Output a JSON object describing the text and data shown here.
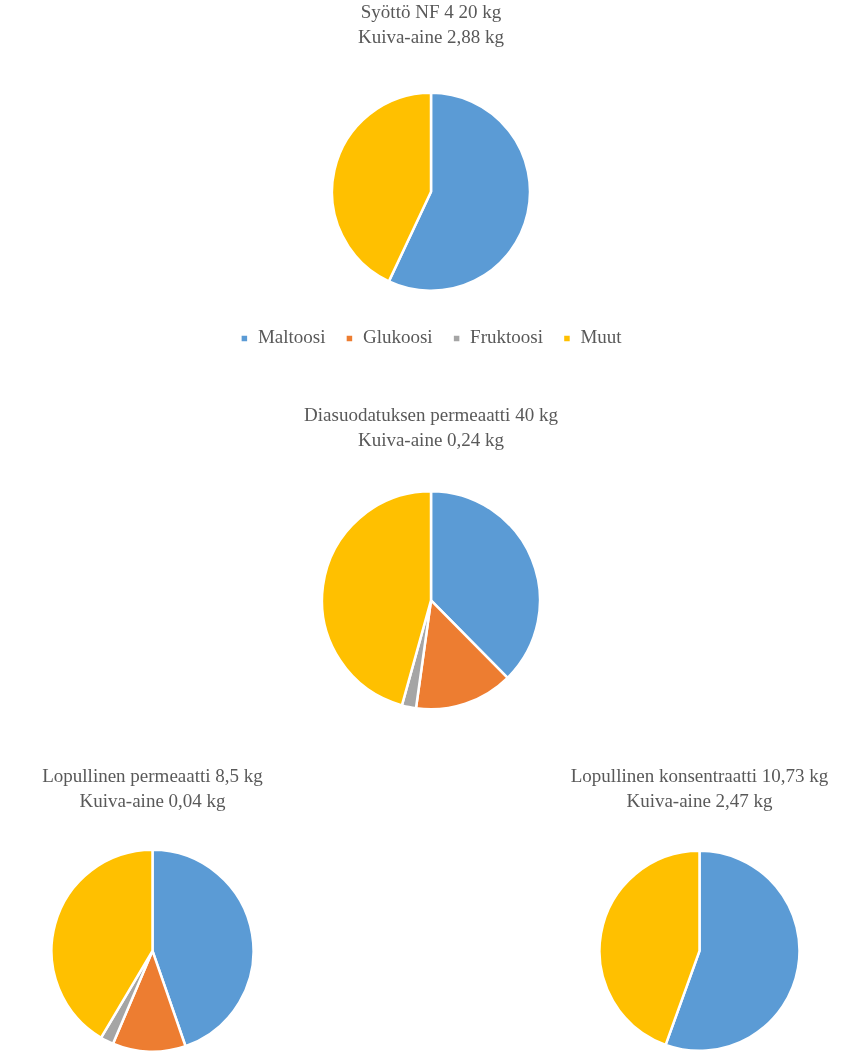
{
  "chart_data": [
    {
      "type": "pie",
      "title": "Syöttö NF 4 20 kg",
      "subtitle": "Kuiva-aine 2,88 kg",
      "categories": [
        "Maltoosi",
        "Glukoosi",
        "Fruktoosi",
        "Muut"
      ],
      "values": [
        57,
        0,
        0,
        43
      ],
      "colors": [
        "#5b9bd5",
        "#ed7d31",
        "#a5a5a5",
        "#ffc000"
      ],
      "legend": "bottom"
    },
    {
      "type": "pie",
      "title": "Diasuodatuksen permeaatti 40 kg",
      "subtitle": "Kuiva-aine 0,24 kg",
      "categories": [
        null,
        null,
        null,
        null
      ],
      "values": [
        37.6,
        14.6,
        2.1,
        45.7
      ],
      "colors": [
        "#5b9bd5",
        "#ed7d31",
        "#a5a5a5",
        "#ffc000"
      ]
    },
    {
      "type": "pie",
      "title": "Lopullinen permeaatti 8,5 kg",
      "subtitle": "Kuiva-aine 0,04 kg",
      "categories": [
        null,
        null,
        null,
        null
      ],
      "values": [
        44.7,
        11.7,
        2.1,
        41.5
      ],
      "colors": [
        "#5b9bd5",
        "#ed7d31",
        "#a5a5a5",
        "#ffc000"
      ]
    },
    {
      "type": "pie",
      "title": "Lopullinen konsentraatti 10,73 kg",
      "subtitle": "Kuiva-aine 2,47 kg",
      "categories": [
        null,
        null,
        null,
        null
      ],
      "values": [
        55.5,
        0,
        0,
        44.5
      ],
      "colors": [
        "#5b9bd5",
        "#ed7d31",
        "#a5a5a5",
        "#ffc000"
      ]
    }
  ]
}
